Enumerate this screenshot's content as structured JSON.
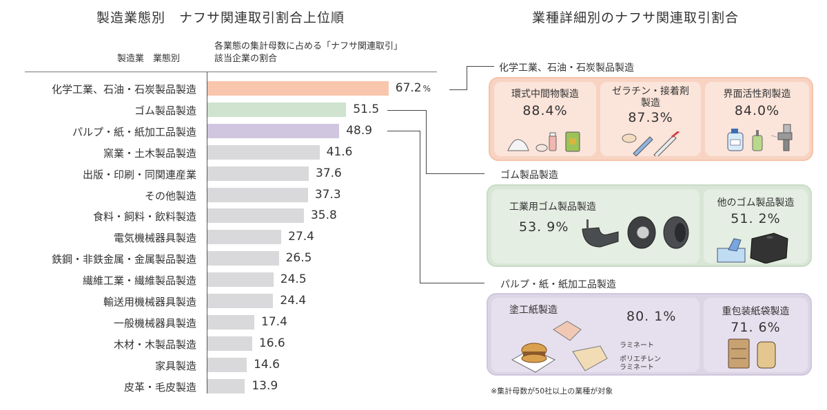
{
  "left": {
    "title": "製造業態別　ナフサ関連取引割合上位順",
    "col_header_category": "製造業　業態別",
    "col_header_value_line1": "各業態の集計母数に占める「ナフサ関連取引」",
    "col_header_value_line2": "該当企業の割合",
    "percent_unit": "%"
  },
  "right": {
    "title": "業種詳細別のナフサ関連取引割合",
    "sections": [
      {
        "name": "化学工業、石油・石炭製品製造",
        "color": "#f8cdb8",
        "cards": [
          {
            "name_line1": "環式中間物製造",
            "name_line2": "",
            "percent": "88.4%",
            "icons": "powder, soap, bottle, bag"
          },
          {
            "name_line1": "ゼラチン・接着剤",
            "name_line2": "製造",
            "percent": "87.3%",
            "icons": "gel, tubes"
          },
          {
            "name_line1": "界面活性剤製造",
            "name_line2": "",
            "percent": "84.0%",
            "icons": "detergent, pump bottle, spray gun"
          }
        ]
      },
      {
        "name": "ゴム製品製造",
        "color": "#d3e4d3",
        "cards": [
          {
            "name_line1": "工業用ゴム製品製造",
            "name_line2": "",
            "percent": "53. 9%",
            "icons": "rubber mount, tires"
          },
          {
            "name_line1": "他のゴム製品製造",
            "name_line2": "",
            "percent": "51. 2%",
            "icons": "gloves, rubber block"
          }
        ]
      },
      {
        "name": "パルプ・紙・紙加工品製造",
        "color": "#d8d0e3",
        "cards": [
          {
            "name_line1": "塗工紙製造",
            "name_line2": "",
            "percent": "80. 1%",
            "icons": "burger wrap, paper bag, filter",
            "annotation1": "ラミネート",
            "annotation2_line1": "ポリエチレン",
            "annotation2_line2": "ラミネート"
          },
          {
            "name_line1": "重包装紙袋製造",
            "name_line2": "",
            "percent": "71. 6%",
            "icons": "paper sacks"
          }
        ]
      }
    ],
    "footnote": "※集計母数が50社以上の業種が対象"
  },
  "chart_data": {
    "type": "bar",
    "orientation": "horizontal",
    "title": "製造業態別　ナフサ関連取引割合上位順",
    "xlabel": "各業態の集計母数に占める「ナフサ関連取引」該当企業の割合 (%)",
    "ylabel": "製造業　業態別",
    "categories": [
      "化学工業、石油・石炭製品製造",
      "ゴム製品製造",
      "パルプ・紙・紙加工品製造",
      "窯業・土木製品製造",
      "出版・印刷・同関連産業",
      "その他製造",
      "食料・飼料・飲料製造",
      "電気機械器具製造",
      "鉄鋼・非鉄金属・金属製品製造",
      "繊維工業・繊維製品製造",
      "輸送用機械器具製造",
      "一般機械器具製造",
      "木材・木製品製造",
      "家具製造",
      "皮革・毛皮製造"
    ],
    "values": [
      67.2,
      51.5,
      48.9,
      41.6,
      37.6,
      37.3,
      35.8,
      27.4,
      26.5,
      24.5,
      24.4,
      17.4,
      16.6,
      14.6,
      13.9
    ],
    "value_labels": [
      "67.2",
      "51.5",
      "48.9",
      "41.6",
      "37.6",
      "37.3",
      "35.8",
      "27.4",
      "26.5",
      "24.5",
      "24.4",
      "17.4",
      "16.6",
      "14.6",
      "13.9"
    ],
    "bar_colors": [
      "#f8c6ad",
      "#cfe3cf",
      "#d1c6df",
      "#d9d8da",
      "#d9d8da",
      "#d9d8da",
      "#d9d8da",
      "#d9d8da",
      "#d9d8da",
      "#d9d8da",
      "#d9d8da",
      "#d9d8da",
      "#d9d8da",
      "#d9d8da",
      "#d9d8da"
    ],
    "xlim": [
      0,
      100
    ],
    "grid": false,
    "legend": "none"
  }
}
